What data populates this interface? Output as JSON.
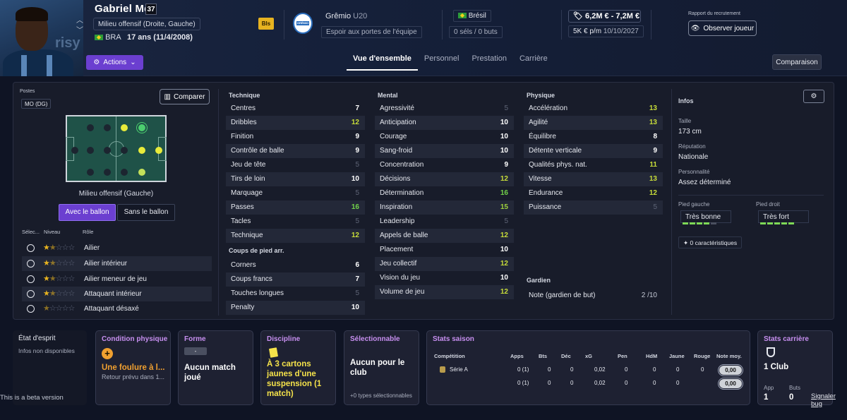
{
  "player": {
    "name": "Gabriel Mec",
    "shirt_number": "37",
    "position": "Milieu offensif (Droite, Gauche)",
    "nationality_code": "BRA",
    "age": "17 ans (11/4/2008)",
    "badge": "Bls",
    "portrait_brand": "risy"
  },
  "header": {
    "actions_label": "Actions",
    "club_name": "Grêmio",
    "club_team": "U20",
    "club_logo_text": "GRÊMIO",
    "squad_status": "Espoir aux portes de l'équipe",
    "nation": "Brésil",
    "caps_goals": "0 séls / 0 buts",
    "value": "6,2M € - 7,2M €",
    "wage": "5K € p/m",
    "contract_end": "10/10/2027",
    "recruit_label": "Rapport du recrutement",
    "observe_label": "Observer joueur",
    "compare_label": "Comparaison"
  },
  "tabs": [
    {
      "label": "Vue d'ensemble",
      "active": true
    },
    {
      "label": "Personnel",
      "active": false
    },
    {
      "label": "Prestation",
      "active": false
    },
    {
      "label": "Carrière",
      "active": false
    }
  ],
  "positions": {
    "title": "Postes",
    "selected": "MO (DG)",
    "compare_label": "Comparer",
    "field_caption": "Milieu offensif (Gauche)",
    "with_ball": "Avec le ballon",
    "without_ball": "Sans le ballon",
    "col_sel": "Sélec...",
    "col_level": "Niveau",
    "col_role": "Rôle",
    "roles": [
      {
        "name": "Ailier",
        "stars": 1.5
      },
      {
        "name": "Ailier intérieur",
        "stars": 1.5
      },
      {
        "name": "Ailier meneur de jeu",
        "stars": 1.5
      },
      {
        "name": "Attaquant intérieur",
        "stars": 1.5
      },
      {
        "name": "Attaquant désaxé",
        "stars": 1
      }
    ]
  },
  "attributes": {
    "technique_title": "Technique",
    "technique": [
      {
        "name": "Centres",
        "value": 7
      },
      {
        "name": "Dribbles",
        "value": 12
      },
      {
        "name": "Finition",
        "value": 9
      },
      {
        "name": "Contrôle de balle",
        "value": 9
      },
      {
        "name": "Jeu de tête",
        "value": 5
      },
      {
        "name": "Tirs de loin",
        "value": 10
      },
      {
        "name": "Marquage",
        "value": 5
      },
      {
        "name": "Passes",
        "value": 16
      },
      {
        "name": "Tacles",
        "value": 5
      },
      {
        "name": "Technique",
        "value": 12
      }
    ],
    "setpieces_title": "Coups de pied arr.",
    "setpieces": [
      {
        "name": "Corners",
        "value": 6
      },
      {
        "name": "Coups francs",
        "value": 7
      },
      {
        "name": "Touches longues",
        "value": 5
      },
      {
        "name": "Penalty",
        "value": 10
      }
    ],
    "mental_title": "Mental",
    "mental": [
      {
        "name": "Agressivité",
        "value": 5
      },
      {
        "name": "Anticipation",
        "value": 10
      },
      {
        "name": "Courage",
        "value": 10
      },
      {
        "name": "Sang-froid",
        "value": 10
      },
      {
        "name": "Concentration",
        "value": 9
      },
      {
        "name": "Décisions",
        "value": 12
      },
      {
        "name": "Détermination",
        "value": 16
      },
      {
        "name": "Inspiration",
        "value": 15
      },
      {
        "name": "Leadership",
        "value": 5
      },
      {
        "name": "Appels de balle",
        "value": 12
      },
      {
        "name": "Placement",
        "value": 10
      },
      {
        "name": "Jeu collectif",
        "value": 12
      },
      {
        "name": "Vision du jeu",
        "value": 10
      },
      {
        "name": "Volume de jeu",
        "value": 12
      }
    ],
    "physique_title": "Physique",
    "physique": [
      {
        "name": "Accélération",
        "value": 13
      },
      {
        "name": "Agilité",
        "value": 13
      },
      {
        "name": "Équilibre",
        "value": 8
      },
      {
        "name": "Détente verticale",
        "value": 9
      },
      {
        "name": "Qualités phys. nat.",
        "value": 11
      },
      {
        "name": "Vitesse",
        "value": 13
      },
      {
        "name": "Endurance",
        "value": 12
      },
      {
        "name": "Puissance",
        "value": 5
      }
    ],
    "goalkeeper_title": "Gardien",
    "goalkeeper_label": "Note (gardien de but)",
    "goalkeeper_value": "2 /10"
  },
  "info": {
    "title": "Infos",
    "height_label": "Taille",
    "height": "173 cm",
    "reputation_label": "Réputation",
    "reputation": "Nationale",
    "personality_label": "Personnalité",
    "personality": "Assez déterminé",
    "left_foot_label": "Pied gauche",
    "left_foot": "Très bonne",
    "left_foot_level": 4,
    "right_foot_label": "Pied droit",
    "right_foot": "Très fort",
    "right_foot_level": 5,
    "traits": "0 caractéristiques"
  },
  "cards": {
    "mood_title": "État d'esprit",
    "mood_text": "Infos non disponibles",
    "condition_title": "Condition physique",
    "condition_main": "Une foulure à l...",
    "condition_sub": "Retour prévu dans 1...",
    "form_title": "Forme",
    "form_badge": "-",
    "form_main_1": "Aucun match",
    "form_main_2": "joué",
    "discipline_title": "Discipline",
    "discipline_1": "À 3 cartons",
    "discipline_2": "jaunes d'une",
    "discipline_3": "suspension (1",
    "discipline_4": "match)",
    "select_title": "Sélectionnable",
    "select_main_1": "Aucun pour le",
    "select_main_2": "club",
    "select_sub": "+0 types sélectionnables",
    "season_title": "Stats saison",
    "career_title": "Stats carrière",
    "career_clubs": "1 Club",
    "career_app_label": "App",
    "career_app": "1",
    "career_goals_label": "Buts",
    "career_goals": "0"
  },
  "season_stats": {
    "headers": [
      "Compétition",
      "Apps",
      "Bts",
      "Déc",
      "xG",
      "Pen",
      "HdM",
      "Jaune",
      "Rouge",
      "Note moy."
    ],
    "rows": [
      {
        "comp": "Série A",
        "apps": "0 (1)",
        "bts": "0",
        "dec": "0",
        "xg": "0,02",
        "pen": "0",
        "hdm": "0",
        "jaune": "0",
        "rouge": "0",
        "note": "0,00"
      },
      {
        "comp": "",
        "apps": "0 (1)",
        "bts": "0",
        "dec": "0",
        "xg": "0,02",
        "pen": "0",
        "hdm": "0",
        "jaune": "0",
        "rouge": "",
        "note": "0,00"
      }
    ]
  },
  "footer": {
    "beta": "This is a beta version",
    "bug": "Signaler bug"
  },
  "colors": {
    "accent": "#6b3fd0",
    "card_title": "#c78ff0",
    "warning": "#e7b320"
  }
}
